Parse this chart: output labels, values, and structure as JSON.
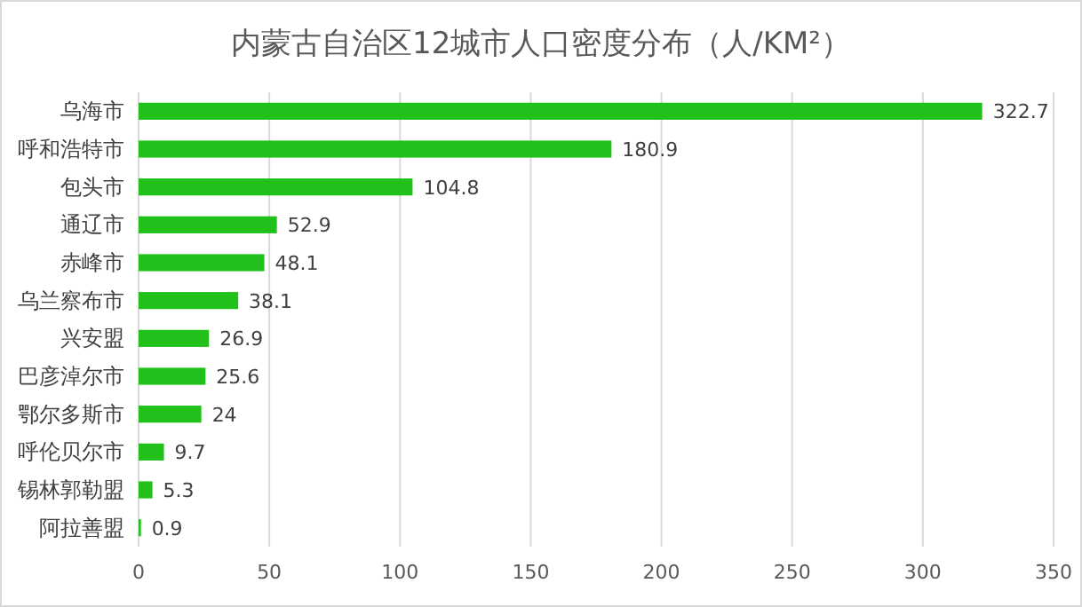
{
  "chart_data": {
    "type": "bar",
    "orientation": "horizontal",
    "title": "内蒙古自治区12城市人口密度分布（人/KM²）",
    "categories": [
      "乌海市",
      "呼和浩特市",
      "包头市",
      "通辽市",
      "赤峰市",
      "乌兰察布市",
      "兴安盟",
      "巴彦淖尔市",
      "鄂尔多斯市",
      "呼伦贝尔市",
      "锡林郭勒盟",
      "阿拉善盟"
    ],
    "values": [
      322.7,
      180.9,
      104.8,
      52.9,
      48.1,
      38.1,
      26.9,
      25.6,
      24,
      9.7,
      5.3,
      0.9
    ],
    "color": "#22c01a",
    "xlim": [
      0,
      350
    ],
    "xticks": [
      0,
      50,
      100,
      150,
      200,
      250,
      300,
      350
    ],
    "grid": "x",
    "data_labels": true
  }
}
